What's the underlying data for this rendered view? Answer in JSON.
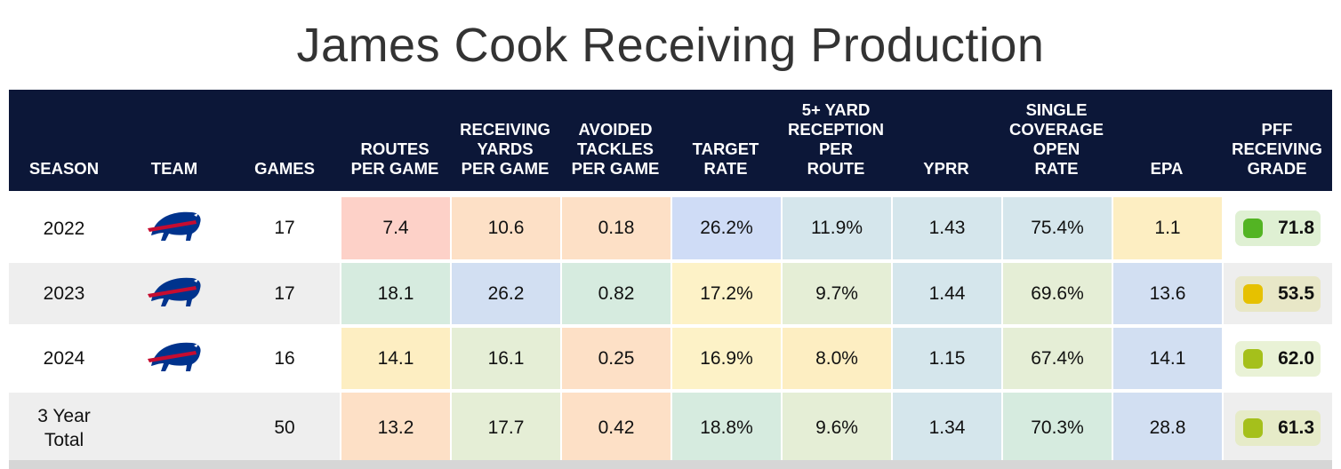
{
  "title": "James Cook Receiving Production",
  "headers": [
    "SEASON",
    "TEAM",
    "GAMES",
    "ROUTES\nPER GAME",
    "RECEIVING\nYARDS\nPER GAME",
    "AVOIDED\nTACKLES\nPER GAME",
    "TARGET\nRATE",
    "5+ YARD\nRECEPTION\nPER\nROUTE",
    "YPRR",
    "SINGLE\nCOVERAGE\nOPEN\nRATE",
    "EPA",
    "PFF\nRECEIVING\nGRADE"
  ],
  "team_logo": "buffalo-bills-logo",
  "rows": [
    {
      "season": "2022",
      "has_logo": true,
      "games": "17",
      "stats": [
        "7.4",
        "10.6",
        "0.18",
        "26.2%",
        "11.9%",
        "1.43",
        "75.4%",
        "1.1"
      ],
      "colors": [
        "#fdd1c8",
        "#fde0c6",
        "#fde0c6",
        "#cfdcf6",
        "#d5e6ec",
        "#d5e6ec",
        "#d5e6ec",
        "#fdeec2"
      ],
      "grade": "71.8",
      "grade_bg": "#dff0d3",
      "grade_color": "#53b423"
    },
    {
      "season": "2023",
      "has_logo": true,
      "games": "17",
      "stats": [
        "18.1",
        "26.2",
        "0.82",
        "17.2%",
        "9.7%",
        "1.44",
        "69.6%",
        "13.6"
      ],
      "colors": [
        "#d6ebdf",
        "#d2dff2",
        "#d6ebdf",
        "#fdf2c7",
        "#e5eed6",
        "#d5e6ec",
        "#e5eed6",
        "#d2dff2"
      ],
      "grade": "53.5",
      "grade_bg": "#e8e7c7",
      "grade_color": "#e6c100"
    },
    {
      "season": "2024",
      "has_logo": true,
      "games": "16",
      "stats": [
        "14.1",
        "16.1",
        "0.25",
        "16.9%",
        "8.0%",
        "1.15",
        "67.4%",
        "14.1"
      ],
      "colors": [
        "#fdeec2",
        "#e5eed6",
        "#fde0c6",
        "#fdf2c7",
        "#fdeec2",
        "#d5e6ec",
        "#e5eed6",
        "#d2dff2"
      ],
      "grade": "62.0",
      "grade_bg": "#e9f2d6",
      "grade_color": "#a5c01b"
    },
    {
      "season": "3 Year\nTotal",
      "has_logo": false,
      "games": "50",
      "stats": [
        "13.2",
        "17.7",
        "0.42",
        "18.8%",
        "9.6%",
        "1.34",
        "70.3%",
        "28.8"
      ],
      "colors": [
        "#fde0c6",
        "#e5eed6",
        "#fde0c6",
        "#d6ebdf",
        "#e5eed6",
        "#d5e6ec",
        "#d6ebdf",
        "#d2dff2"
      ],
      "grade": "61.3",
      "grade_bg": "#e6ebc8",
      "grade_color": "#a5c01b"
    }
  ]
}
